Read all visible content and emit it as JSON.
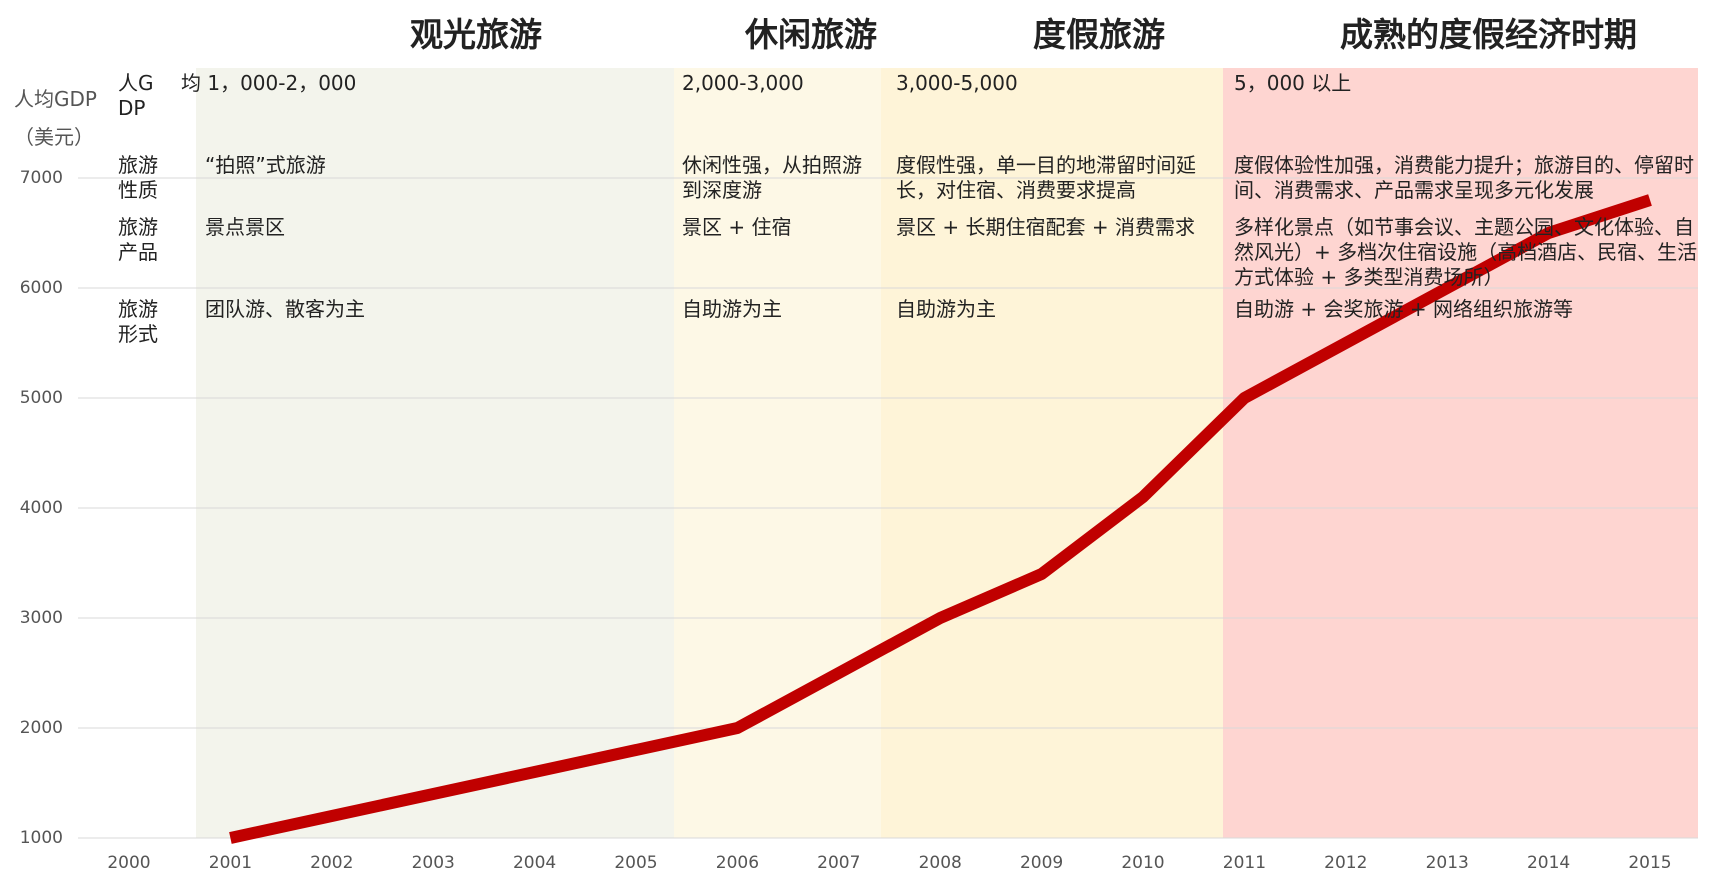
{
  "chart_data": {
    "type": "line",
    "y_axis_label": "人均GDP（美元）",
    "categories": [
      "2000",
      "2001",
      "2002",
      "2003",
      "2004",
      "2005",
      "2006",
      "2007",
      "2008",
      "2009",
      "2010",
      "2011",
      "2012",
      "2013",
      "2014",
      "2015"
    ],
    "series": [
      {
        "color": "#c00000",
        "values": [
          null,
          1000,
          1200,
          1400,
          1600,
          1800,
          2000,
          2500,
          3000,
          3400,
          4100,
          5000,
          5500,
          6000,
          6500,
          6800
        ]
      }
    ],
    "ylim": [
      1000,
      8000
    ],
    "yticks": [
      1000,
      2000,
      3000,
      4000,
      5000,
      6000,
      7000
    ],
    "grid": true,
    "row_labels": [
      "人GDP",
      "旅游性质",
      "旅游产品",
      "旅游形式"
    ],
    "phases": [
      {
        "title": "观光旅游",
        "color": "#f3f4ec",
        "cells": [
          "均 1，000-2，000",
          "“拍照”式旅游",
          "景点景区",
          "团队游、散客为主"
        ]
      },
      {
        "title": "休闲旅游",
        "color": "#fdf8e6",
        "cells": [
          "2,000-3,000",
          "休闲性强，从拍照游到深度游",
          "景区 + 住宿",
          "自助游为主"
        ]
      },
      {
        "title": "度假旅游",
        "color": "#fef4d8",
        "cells": [
          "3,000-5,000",
          "度假性强，单一目的地滞留时间延长，对住宿、消费要求提高",
          "景区 + 长期住宿配套 + 消费需求",
          "自助游为主"
        ]
      },
      {
        "title": "成熟的度假经济时期",
        "color": "#fed5d1",
        "cells": [
          "5，000 以上",
          "度假体验性加强，消费能力提升；旅游目的、停留时间、消费需求、产品需求呈现多元化发展",
          "多样化景点（如节事会议、主题公园、文化体验、自然风光）+ 多档次住宿设施（高档酒店、民宿、生活方式体验 + 多类型消费场所）",
          "自助游 + 会奖旅游 + 网络组织旅游等"
        ]
      }
    ]
  }
}
